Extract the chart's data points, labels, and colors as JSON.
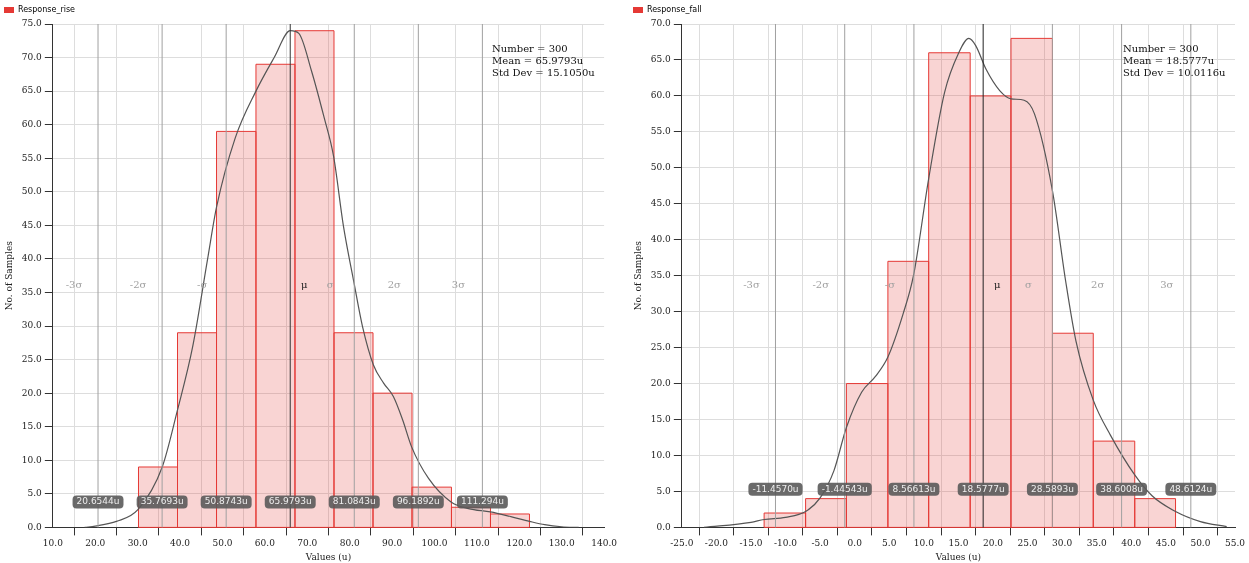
{
  "chart_data": [
    {
      "type": "histogram",
      "xlabel": "Values (u)",
      "ylabel": "No. of Samples",
      "legend": "top left",
      "grid": true,
      "xlim": [
        10,
        140
      ],
      "ylim": [
        0,
        75
      ],
      "xticks": [
        {
          "value": 10,
          "label": "10.0"
        },
        {
          "value": 20,
          "label": "20.0"
        },
        {
          "value": 30,
          "label": "30.0"
        },
        {
          "value": 40,
          "label": "40.0"
        },
        {
          "value": 50,
          "label": "50.0"
        },
        {
          "value": 60,
          "label": "60.0"
        },
        {
          "value": 70,
          "label": "70.0"
        },
        {
          "value": 80,
          "label": "80.0"
        },
        {
          "value": 90,
          "label": "90.0"
        },
        {
          "value": 100,
          "label": "100.0"
        },
        {
          "value": 110,
          "label": "110.0"
        },
        {
          "value": 120,
          "label": "120.0"
        },
        {
          "value": 130,
          "label": "130.0"
        },
        {
          "value": 140,
          "label": "140.0"
        }
      ],
      "yticks": [
        {
          "value": 0,
          "label": "0.0"
        },
        {
          "value": 5,
          "label": "5.0"
        },
        {
          "value": 10,
          "label": "10.0"
        },
        {
          "value": 15,
          "label": "15.0"
        },
        {
          "value": 20,
          "label": "20.0"
        },
        {
          "value": 25,
          "label": "25.0"
        },
        {
          "value": 30,
          "label": "30.0"
        },
        {
          "value": 35,
          "label": "35.0"
        },
        {
          "value": 40,
          "label": "40.0"
        },
        {
          "value": 45,
          "label": "45.0"
        },
        {
          "value": 50,
          "label": "50.0"
        },
        {
          "value": 55,
          "label": "55.0"
        },
        {
          "value": 60,
          "label": "60.0"
        },
        {
          "value": 65,
          "label": "65.0"
        },
        {
          "value": 70,
          "label": "70.0"
        },
        {
          "value": 75,
          "label": "75.0"
        }
      ],
      "series": [
        {
          "name": "Response_rise",
          "type": "histogram",
          "color": "#e53935",
          "bins": [
            30.2,
            39.4,
            48.6,
            57.9,
            67.1,
            76.3,
            85.5,
            94.7,
            104.0,
            113.2,
            122.4
          ],
          "values": [
            9,
            29,
            59,
            69,
            74,
            29,
            20,
            6,
            3,
            2
          ]
        },
        {
          "type": "line",
          "color": "#555555",
          "x": [
            17.5,
            20,
            25,
            30,
            35.8,
            39.4,
            43,
            46.5,
            48.6,
            53,
            57.9,
            62.2,
            66,
            68,
            71,
            74,
            76.2,
            78.5,
            81,
            83,
            85.6,
            88,
            90.3,
            92.5,
            94.6,
            98.6,
            103.9,
            108,
            113.2,
            118,
            122.4,
            126,
            130,
            134
          ],
          "values": [
            0,
            0.2,
            0.9,
            2.6,
            9,
            17.5,
            27,
            40,
            47.7,
            58,
            65,
            70,
            74,
            73.6,
            68,
            61,
            55.3,
            45,
            36.5,
            30,
            24.2,
            21.5,
            19.5,
            16,
            12,
            7.3,
            3.8,
            2.8,
            2.3,
            1.6,
            0.9,
            0.4,
            0.1,
            0
          ]
        }
      ],
      "ref_lines": [
        {
          "axis": "x",
          "value": 20.6544,
          "label": "-3σ",
          "color": "#a0a0a0"
        },
        {
          "axis": "x",
          "value": 35.7693,
          "label": "-2σ",
          "color": "#a0a0a0"
        },
        {
          "axis": "x",
          "value": 50.8743,
          "label": "-σ",
          "color": "#a0a0a0"
        },
        {
          "axis": "x",
          "value": 65.9793,
          "label": "μ",
          "color": "#333333"
        },
        {
          "axis": "x",
          "value": 81.0843,
          "label": "σ",
          "color": "#a0a0a0"
        },
        {
          "axis": "x",
          "value": 96.1892,
          "label": "2σ",
          "color": "#a0a0a0"
        },
        {
          "axis": "x",
          "value": 111.294,
          "label": "3σ",
          "color": "#a0a0a0"
        }
      ],
      "annotations": [
        "Number = 300",
        "Mean = 65.9793u",
        "Std Dev = 15.1050u",
        {
          "text": "20.6544u",
          "x": 20.6544,
          "y": 3.8
        },
        {
          "text": "35.7693u",
          "x": 35.7693,
          "y": 3.8
        },
        {
          "text": "50.8743u",
          "x": 50.8743,
          "y": 3.8
        },
        {
          "text": "65.9793u",
          "x": 65.9793,
          "y": 3.8
        },
        {
          "text": "81.0843u",
          "x": 81.0843,
          "y": 3.8
        },
        {
          "text": "96.1892u",
          "x": 96.1892,
          "y": 3.8
        },
        {
          "text": "111.294u",
          "x": 111.294,
          "y": 3.8
        }
      ]
    },
    {
      "type": "histogram",
      "xlabel": "Values (u)",
      "ylabel": "No. of Samples",
      "legend": "top left",
      "grid": true,
      "xlim": [
        -25,
        55
      ],
      "ylim": [
        0,
        70
      ],
      "xticks": [
        {
          "value": -25,
          "label": "-25.0"
        },
        {
          "value": -20,
          "label": "-20.0"
        },
        {
          "value": -15,
          "label": "-15.0"
        },
        {
          "value": -10,
          "label": "-10.0"
        },
        {
          "value": -5,
          "label": "-5.0"
        },
        {
          "value": 0,
          "label": "0.0"
        },
        {
          "value": 5,
          "label": "5.0"
        },
        {
          "value": 10,
          "label": "10.0"
        },
        {
          "value": 15,
          "label": "15.0"
        },
        {
          "value": 20,
          "label": "20.0"
        },
        {
          "value": 25,
          "label": "25.0"
        },
        {
          "value": 30,
          "label": "30.0"
        },
        {
          "value": 35,
          "label": "35.0"
        },
        {
          "value": 40,
          "label": "40.0"
        },
        {
          "value": 45,
          "label": "45.0"
        },
        {
          "value": 50,
          "label": "50.0"
        },
        {
          "value": 55,
          "label": "55.0"
        }
      ],
      "yticks": [
        {
          "value": 0,
          "label": "0.0"
        },
        {
          "value": 5,
          "label": "5.0"
        },
        {
          "value": 10,
          "label": "10.0"
        },
        {
          "value": 15,
          "label": "15.0"
        },
        {
          "value": 20,
          "label": "20.0"
        },
        {
          "value": 25,
          "label": "25.0"
        },
        {
          "value": 30,
          "label": "30.0"
        },
        {
          "value": 35,
          "label": "35.0"
        },
        {
          "value": 40,
          "label": "40.0"
        },
        {
          "value": 45,
          "label": "45.0"
        },
        {
          "value": 50,
          "label": "50.0"
        },
        {
          "value": 55,
          "label": "55.0"
        },
        {
          "value": 60,
          "label": "60.0"
        },
        {
          "value": 65,
          "label": "65.0"
        },
        {
          "value": 70,
          "label": "70.0"
        }
      ],
      "series": [
        {
          "name": "Response_fall",
          "type": "histogram",
          "color": "#e53935",
          "bins": [
            -13.1,
            -7.1,
            -1.2,
            4.8,
            10.7,
            16.7,
            22.6,
            28.6,
            34.5,
            40.5,
            46.4
          ],
          "values": [
            2,
            4,
            20,
            37,
            66,
            60,
            68,
            27,
            12,
            4
          ]
        },
        {
          "type": "line",
          "color": "#555555",
          "x": [
            -21.8,
            -15,
            -13.1,
            -10,
            -7.1,
            -5,
            -3,
            -1.2,
            1,
            3,
            4.8,
            7,
            8.5,
            10.7,
            13,
            15,
            16.5,
            17.5,
            19,
            21,
            22.6,
            24.5,
            26,
            28.6,
            30.5,
            32,
            34.5,
            37,
            40.5,
            43,
            46.4,
            50,
            53.8
          ],
          "values": [
            0,
            0.7,
            1.1,
            1.4,
            2.2,
            4.1,
            7.9,
            13.9,
            18.8,
            21,
            23.7,
            29.7,
            35,
            48.5,
            60.5,
            65.9,
            68,
            67,
            63.7,
            60.7,
            59.6,
            59.4,
            57.5,
            46.8,
            34.3,
            25.9,
            17.7,
            12.8,
            7.3,
            4.4,
            2.2,
            0.8,
            0.1
          ]
        }
      ],
      "ref_lines": [
        {
          "axis": "x",
          "value": -11.457,
          "label": "-3σ",
          "color": "#a0a0a0"
        },
        {
          "axis": "x",
          "value": -1.44543,
          "label": "-2σ",
          "color": "#a0a0a0"
        },
        {
          "axis": "x",
          "value": 8.56613,
          "label": "-σ",
          "color": "#a0a0a0"
        },
        {
          "axis": "x",
          "value": 18.5777,
          "label": "μ",
          "color": "#222222"
        },
        {
          "axis": "x",
          "value": 28.5893,
          "label": "σ",
          "color": "#a0a0a0"
        },
        {
          "axis": "x",
          "value": 38.6008,
          "label": "2σ",
          "color": "#a0a0a0"
        },
        {
          "axis": "x",
          "value": 48.6124,
          "label": "3σ",
          "color": "#a0a0a0"
        }
      ],
      "annotations": [
        "Number = 300",
        "Mean = 18.5777u",
        "Std Dev = 10.0116u",
        {
          "text": "-11.4570u",
          "x": -11.457,
          "y": 5.3
        },
        {
          "text": "-1.44543u",
          "x": -1.44543,
          "y": 5.3
        },
        {
          "text": "8.56613u",
          "x": 8.56613,
          "y": 5.3
        },
        {
          "text": "18.5777u",
          "x": 18.5777,
          "y": 5.3
        },
        {
          "text": "28.5893u",
          "x": 28.5893,
          "y": 5.3
        },
        {
          "text": "38.6008u",
          "x": 38.6008,
          "y": 5.3
        },
        {
          "text": "48.6124u",
          "x": 48.6124,
          "y": 5.3
        }
      ]
    }
  ]
}
